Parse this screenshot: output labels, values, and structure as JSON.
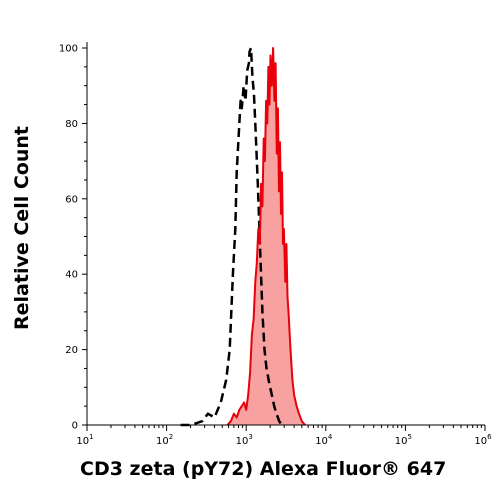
{
  "chart_data": {
    "type": "area",
    "xlabel": "CD3 zeta (pY72) Alexa Fluor® 647",
    "ylabel": "Relative Cell Count",
    "xscale": "log",
    "xlim": [
      10,
      1000000
    ],
    "ylim": [
      0,
      100
    ],
    "x_ticks": [
      {
        "base": "10",
        "exp": "1",
        "value": 10
      },
      {
        "base": "10",
        "exp": "2",
        "value": 100
      },
      {
        "base": "10",
        "exp": "3",
        "value": 1000
      },
      {
        "base": "10",
        "exp": "4",
        "value": 10000
      },
      {
        "base": "10",
        "exp": "5",
        "value": 100000
      },
      {
        "base": "10",
        "exp": "6",
        "value": 1000000
      }
    ],
    "y_ticks": [
      "0",
      "20",
      "40",
      "60",
      "80",
      "100"
    ],
    "series": [
      {
        "style": "dashed black line, no fill",
        "color": "#000000",
        "x": [
          150,
          200,
          280,
          330,
          400,
          480,
          560,
          620,
          680,
          730,
          760,
          800,
          850,
          880,
          930,
          980,
          1030,
          1080,
          1100,
          1150,
          1200,
          1250,
          1300,
          1400,
          1500,
          1600,
          1700,
          1800,
          1950,
          2100,
          2250,
          2400,
          2600,
          2800
        ],
        "y": [
          0,
          0,
          1,
          3,
          2,
          6,
          12,
          20,
          40,
          52,
          67,
          76,
          86,
          84,
          90,
          86,
          94,
          96,
          99,
          100,
          92,
          88,
          80,
          64,
          46,
          30,
          20,
          15,
          11,
          8,
          5,
          3,
          1,
          0
        ]
      },
      {
        "style": "solid red line with light red fill",
        "color": "#e8000b",
        "fill": "#f7a1a1",
        "x": [
          580,
          640,
          700,
          760,
          820,
          880,
          940,
          1000,
          1060,
          1120,
          1180,
          1240,
          1300,
          1360,
          1420,
          1480,
          1540,
          1600,
          1660,
          1720,
          1780,
          1840,
          1900,
          1960,
          2020,
          2100,
          2180,
          2260,
          2340,
          2420,
          2500,
          2580,
          2660,
          2740,
          2820,
          2900,
          2980,
          3100,
          3200,
          3300,
          3400,
          3600,
          3800,
          4000,
          4300,
          4600,
          5000,
          5500
        ],
        "y": [
          0,
          1,
          3,
          2,
          4,
          5,
          6,
          4,
          8,
          14,
          24,
          28,
          38,
          43,
          52,
          48,
          64,
          58,
          76,
          70,
          86,
          80,
          95,
          85,
          98,
          90,
          100,
          86,
          96,
          72,
          84,
          62,
          75,
          56,
          67,
          48,
          52,
          38,
          48,
          34,
          30,
          20,
          12,
          8,
          5,
          3,
          1,
          0
        ]
      }
    ]
  }
}
